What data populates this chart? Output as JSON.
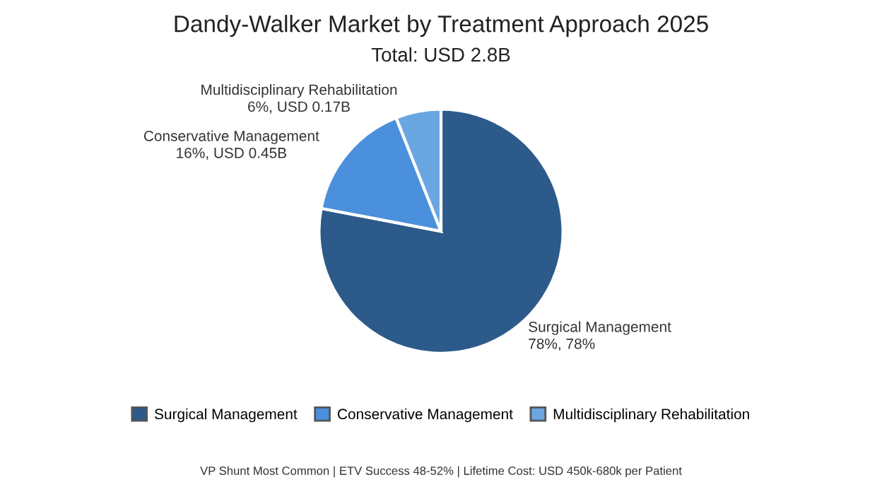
{
  "chart_data": {
    "type": "pie",
    "title": "Dandy-Walker Market by Treatment Approach 2025",
    "subtitle": "Total: USD 2.8B",
    "categories": [
      "Surgical Management",
      "Conservative Management",
      "Multidisciplinary Rehabilitation"
    ],
    "values": [
      78,
      16,
      6
    ],
    "colors": [
      "#2c5a8a",
      "#4a90dc",
      "#6aa6e2"
    ],
    "value_labels": [
      "78%, 78%",
      "16%, USD 0.45B",
      "6%, USD 0.17B"
    ],
    "legend": "bottom",
    "annotations": [
      "VP Shunt Most Common | ETV Success 48-52% | Lifetime Cost: USD 450k-680k per Patient"
    ]
  }
}
